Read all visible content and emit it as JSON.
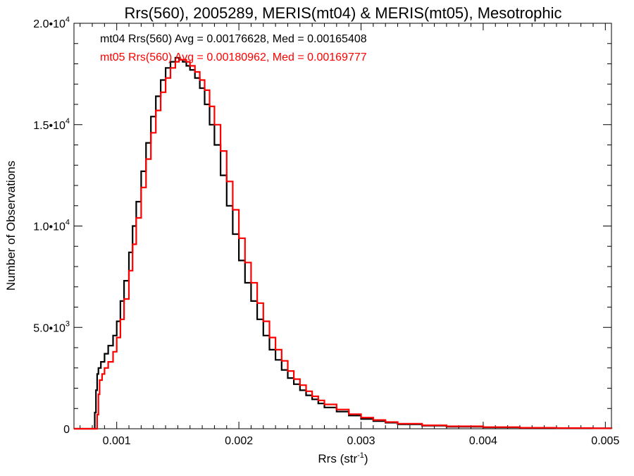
{
  "chart_data": {
    "type": "line",
    "title": "Rrs(560), 2005289, MERIS(mt04) & MERIS(mt05), Mesotrophic",
    "xlabel": "Rrs (str",
    "xlabel_sup": "-1",
    "xlabel_tail": ")",
    "ylabel": "Number of Observations",
    "xlim": [
      0.00065,
      0.00505
    ],
    "ylim": [
      0,
      20000
    ],
    "xticks": [
      {
        "value": 0.001,
        "label": "0.001"
      },
      {
        "value": 0.002,
        "label": "0.002"
      },
      {
        "value": 0.003,
        "label": "0.003"
      },
      {
        "value": 0.004,
        "label": "0.004"
      },
      {
        "value": 0.005,
        "label": "0.005"
      }
    ],
    "yticks": [
      {
        "value": 0,
        "mant": "0",
        "exp": ""
      },
      {
        "value": 5000,
        "mant": "5.0•10",
        "exp": "3"
      },
      {
        "value": 10000,
        "mant": "1.0•10",
        "exp": "4"
      },
      {
        "value": 15000,
        "mant": "1.5•10",
        "exp": "4"
      },
      {
        "value": 20000,
        "mant": "2.0•10",
        "exp": "4"
      }
    ],
    "grid": false,
    "legend_position": "top-left",
    "annotations": [
      {
        "text": "mt04 Rrs(560) Avg = 0.00176628, Med = 0.00165408",
        "color": "#000000"
      },
      {
        "text": "mt05 Rrs(560) Avg = 0.00180962, Med = 0.00169777",
        "color": "#ff0000"
      }
    ],
    "series": [
      {
        "color": "#000000",
        "x": [
          0.00065,
          0.00075,
          0.0008,
          0.00082,
          0.00083,
          0.00084,
          0.00085,
          0.00087,
          0.0009,
          0.00093,
          0.00097,
          0.001,
          0.00103,
          0.00106,
          0.0011,
          0.00113,
          0.00116,
          0.0012,
          0.00124,
          0.00128,
          0.00132,
          0.00136,
          0.0014,
          0.00144,
          0.00148,
          0.00151,
          0.00154,
          0.00157,
          0.0016,
          0.00164,
          0.00168,
          0.00172,
          0.00176,
          0.0018,
          0.00185,
          0.0019,
          0.00195,
          0.002,
          0.00205,
          0.0021,
          0.00215,
          0.0022,
          0.00225,
          0.0023,
          0.00235,
          0.0024,
          0.00245,
          0.0025,
          0.00255,
          0.0026,
          0.00265,
          0.0027,
          0.0028,
          0.0029,
          0.003,
          0.0031,
          0.0032,
          0.0033,
          0.0035,
          0.0037,
          0.004,
          0.0043,
          0.0046,
          0.0049,
          0.00505
        ],
        "y": [
          0,
          0,
          0,
          800,
          1900,
          2700,
          3000,
          3300,
          3700,
          4100,
          4600,
          5300,
          6300,
          7300,
          8700,
          10000,
          11200,
          12700,
          14100,
          15400,
          16400,
          17200,
          17800,
          18100,
          18300,
          18200,
          18100,
          17900,
          17700,
          17300,
          16800,
          16000,
          15000,
          14000,
          12500,
          11000,
          9600,
          8300,
          7200,
          6300,
          5400,
          4600,
          3900,
          3400,
          2900,
          2500,
          2200,
          1900,
          1650,
          1450,
          1250,
          1050,
          850,
          650,
          480,
          380,
          300,
          220,
          150,
          100,
          70,
          45,
          30,
          20,
          15
        ]
      },
      {
        "color": "#ff0000",
        "x": [
          0.00065,
          0.00075,
          0.0008,
          0.00083,
          0.00084,
          0.00085,
          0.00086,
          0.00088,
          0.0009,
          0.00093,
          0.00097,
          0.001,
          0.00103,
          0.00106,
          0.0011,
          0.00113,
          0.00116,
          0.0012,
          0.00124,
          0.00128,
          0.00132,
          0.00136,
          0.0014,
          0.00144,
          0.00148,
          0.00151,
          0.00154,
          0.00157,
          0.0016,
          0.00164,
          0.00168,
          0.00172,
          0.00176,
          0.0018,
          0.00185,
          0.0019,
          0.00195,
          0.002,
          0.00205,
          0.0021,
          0.00215,
          0.0022,
          0.00225,
          0.0023,
          0.00235,
          0.0024,
          0.00245,
          0.0025,
          0.00255,
          0.0026,
          0.00265,
          0.0027,
          0.0028,
          0.0029,
          0.003,
          0.0031,
          0.0032,
          0.0033,
          0.0035,
          0.0037,
          0.004,
          0.0043,
          0.0046,
          0.0049,
          0.00505
        ],
        "y": [
          0,
          0,
          0,
          0,
          700,
          1700,
          2400,
          2700,
          3000,
          3300,
          3800,
          4500,
          5400,
          6400,
          7800,
          9100,
          10400,
          11900,
          13300,
          14600,
          15700,
          16600,
          17300,
          17800,
          18100,
          18200,
          18200,
          18100,
          17900,
          17600,
          17200,
          16700,
          15900,
          15000,
          13700,
          12200,
          10800,
          9400,
          8200,
          7200,
          6200,
          5300,
          4500,
          3900,
          3350,
          2850,
          2450,
          2150,
          1850,
          1600,
          1400,
          1200,
          950,
          720,
          550,
          430,
          330,
          250,
          170,
          120,
          80,
          50,
          35,
          25,
          20
        ]
      }
    ]
  }
}
